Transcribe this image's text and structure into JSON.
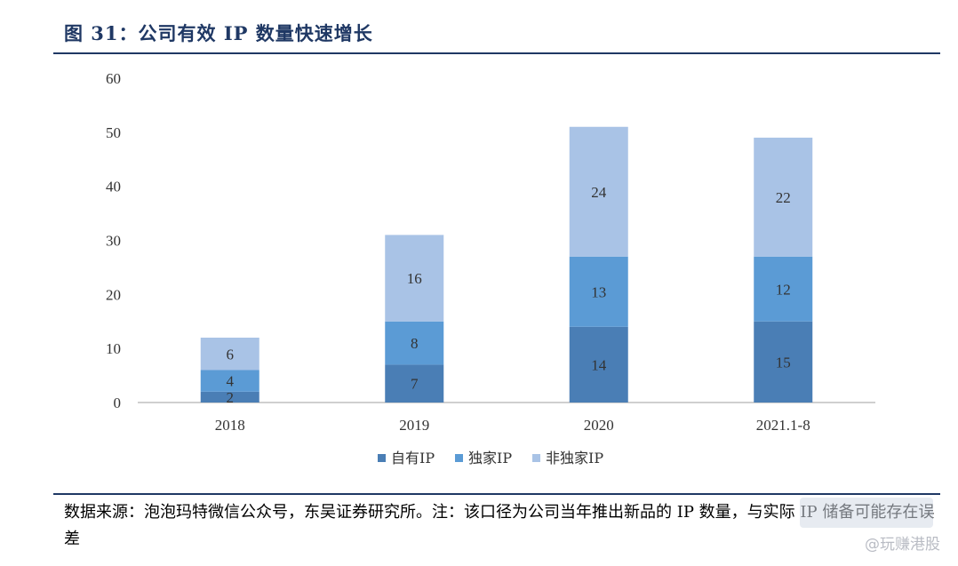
{
  "figure": {
    "title": "图 31：公司有效 IP 数量快速增长",
    "source_text": "数据来源：泡泡玛特微信公众号，东吴证券研究所。注：该口径为公司当年推出新品的 IP 数量，与实际 IP 储备可能存在误差",
    "watermark": "@玩赚港股"
  },
  "chart_data": {
    "type": "bar",
    "stacked": true,
    "categories": [
      "2018",
      "2019",
      "2020",
      "2021.1-8"
    ],
    "series": [
      {
        "name": "自有IP",
        "values": [
          2,
          7,
          14,
          15
        ],
        "color": "#4a7eb5"
      },
      {
        "name": "独家IP",
        "values": [
          4,
          8,
          13,
          12
        ],
        "color": "#5b9bd5"
      },
      {
        "name": "非独家IP",
        "values": [
          6,
          16,
          24,
          22
        ],
        "color": "#a9c3e6"
      }
    ],
    "ylim": [
      0,
      60
    ],
    "yticks": [
      0,
      10,
      20,
      30,
      40,
      50,
      60
    ],
    "grid": false,
    "legend_position": "bottom",
    "data_labels": true
  }
}
